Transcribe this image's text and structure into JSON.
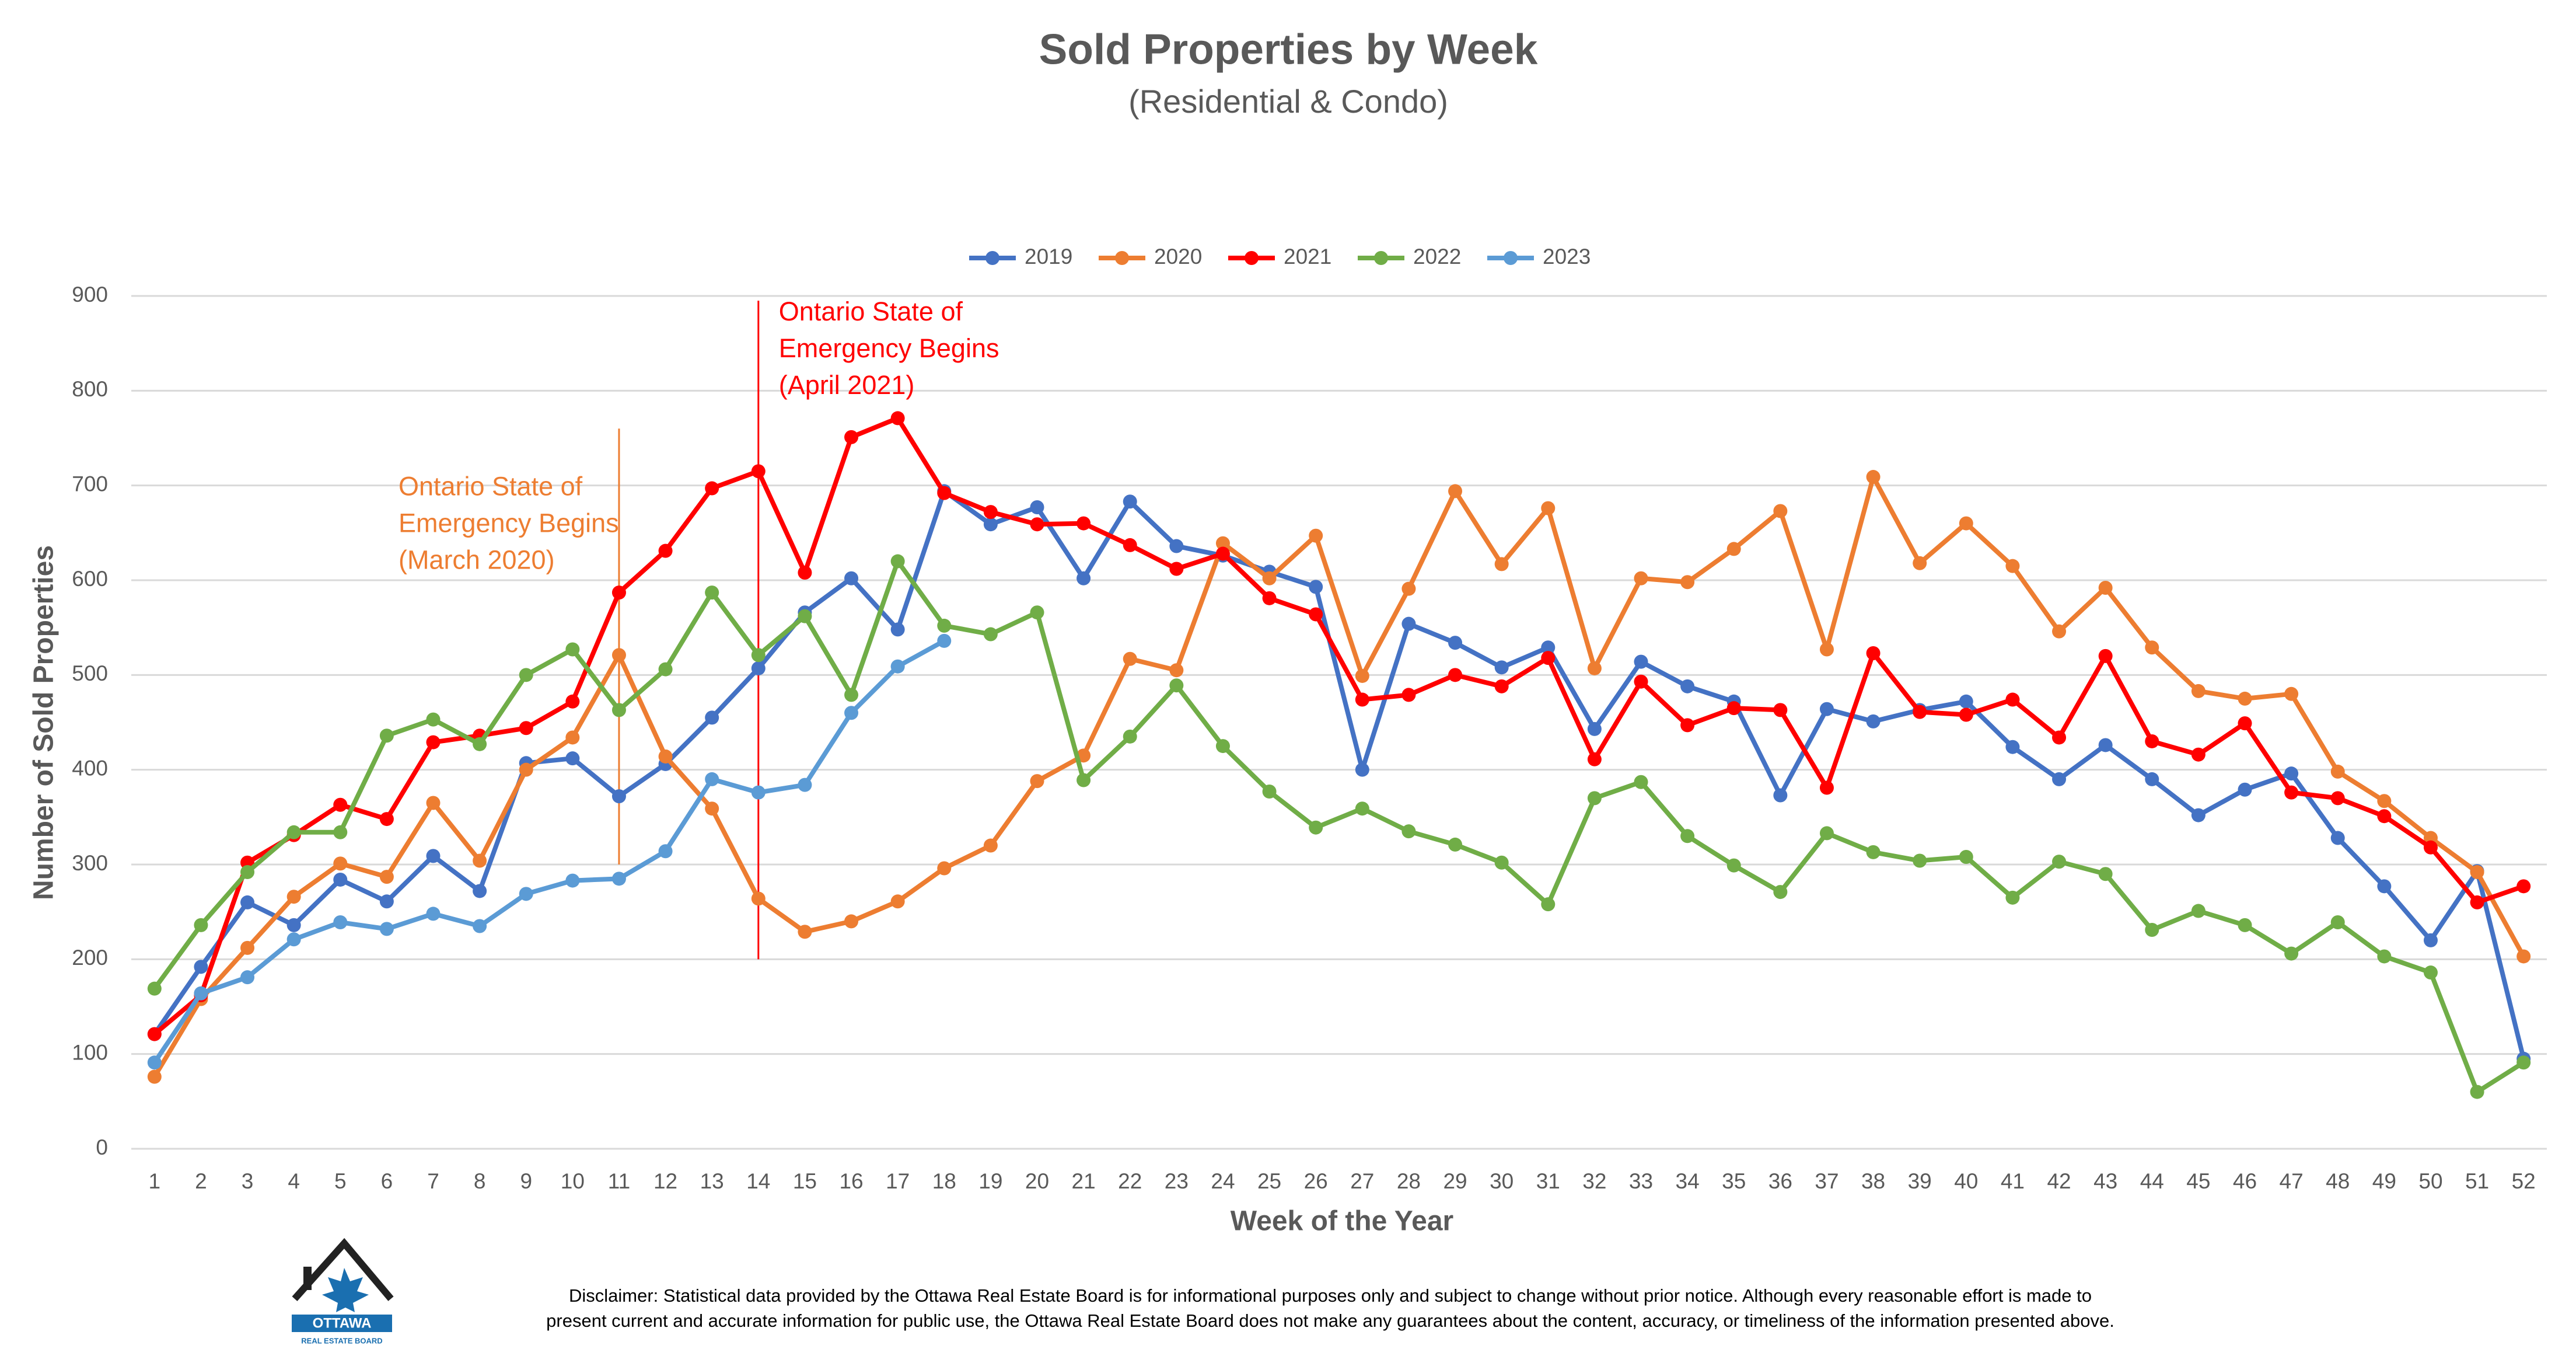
{
  "chart_data": {
    "type": "line",
    "title": "Sold Properties by Week",
    "subtitle": "(Residential & Condo)",
    "x_label": "Week of the Year",
    "y_label": "Number of Sold Properties",
    "categories": [
      "1",
      "2",
      "3",
      "4",
      "5",
      "6",
      "7",
      "8",
      "9",
      "10",
      "11",
      "12",
      "13",
      "14",
      "15",
      "16",
      "17",
      "18",
      "19",
      "20",
      "21",
      "22",
      "23",
      "24",
      "25",
      "26",
      "27",
      "28",
      "29",
      "30",
      "31",
      "32",
      "33",
      "34",
      "35",
      "36",
      "37",
      "38",
      "39",
      "40",
      "41",
      "42",
      "43",
      "44",
      "45",
      "46",
      "47",
      "48",
      "49",
      "50",
      "51",
      "52"
    ],
    "series": [
      {
        "name": "2019",
        "color": "#4472c4",
        "values": [
          121,
          192,
          260,
          236,
          284,
          261,
          309,
          272,
          407,
          412,
          372,
          406,
          455,
          507,
          566,
          602,
          548,
          694,
          659,
          677,
          602,
          683,
          636,
          626,
          609,
          593,
          400,
          554,
          534,
          508,
          529,
          443,
          514,
          488,
          472,
          373,
          464,
          451,
          463,
          472,
          424,
          390,
          426,
          390,
          352,
          379,
          396,
          328,
          277,
          220,
          293,
          95
        ]
      },
      {
        "name": "2020",
        "color": "#ed7d31",
        "values": [
          76,
          158,
          212,
          266,
          301,
          287,
          365,
          304,
          400,
          434,
          521,
          414,
          359,
          264,
          229,
          240,
          261,
          296,
          320,
          388,
          415,
          517,
          505,
          639,
          602,
          647,
          499,
          591,
          694,
          617,
          676,
          507,
          602,
          598,
          633,
          673,
          527,
          709,
          618,
          660,
          615,
          546,
          592,
          529,
          483,
          475,
          480,
          398,
          367,
          328,
          292,
          203
        ]
      },
      {
        "name": "2021",
        "color": "#ff0000",
        "values": [
          121,
          162,
          302,
          331,
          363,
          348,
          429,
          436,
          444,
          472,
          587,
          631,
          697,
          715,
          608,
          751,
          771,
          692,
          672,
          659,
          660,
          637,
          612,
          628,
          581,
          564,
          474,
          479,
          500,
          488,
          518,
          411,
          493,
          447,
          465,
          463,
          381,
          523,
          461,
          458,
          474,
          434,
          520,
          430,
          416,
          449,
          376,
          370,
          351,
          318,
          260,
          277
        ]
      },
      {
        "name": "2022",
        "color": "#70ad47",
        "values": [
          169,
          236,
          292,
          334,
          334,
          436,
          453,
          427,
          500,
          527,
          463,
          506,
          587,
          521,
          562,
          479,
          620,
          552,
          543,
          566,
          389,
          435,
          489,
          425,
          377,
          339,
          359,
          335,
          321,
          302,
          258,
          370,
          387,
          330,
          299,
          271,
          333,
          313,
          304,
          308,
          265,
          303,
          290,
          231,
          251,
          236,
          206,
          239,
          203,
          186,
          60,
          91
        ]
      },
      {
        "name": "2023",
        "color": "#5b9bd5",
        "values": [
          91,
          164,
          181,
          221,
          239,
          232,
          248,
          235,
          269,
          283,
          285,
          314,
          390,
          376,
          384,
          460,
          509,
          536,
          null,
          null,
          null,
          null,
          null,
          null,
          null,
          null,
          null,
          null,
          null,
          null,
          null,
          null,
          null,
          null,
          null,
          null,
          null,
          null,
          null,
          null,
          null,
          null,
          null,
          null,
          null,
          null,
          null,
          null,
          null,
          null,
          null,
          null
        ]
      }
    ],
    "ylim": [
      0,
      900
    ],
    "yticks": [
      0,
      100,
      200,
      300,
      400,
      500,
      600,
      700,
      800,
      900
    ],
    "grid": true,
    "legend": "top",
    "annotations": [
      {
        "week": 11,
        "y_range": [
          300,
          760
        ],
        "color": "#ed7d31",
        "lines": [
          "Ontario State of",
          "Emergency Begins",
          "(March 2020)"
        ]
      },
      {
        "week": 14,
        "y_range": [
          200,
          895
        ],
        "color": "#ff0000",
        "lines": [
          "Ontario State of",
          "Emergency Begins",
          "(April 2021)"
        ]
      }
    ]
  },
  "footer": {
    "logo": [
      "OTTAWA",
      "REAL ESTATE BOARD"
    ],
    "disclaimer": [
      "Disclaimer: Statistical data provided by the Ottawa Real Estate Board is for informational purposes only and subject to change without prior notice. Although every reasonable effort is made to",
      "present current and accurate information for public use, the Ottawa Real Estate Board does not make any guarantees about the content, accuracy, or timeliness of the information presented above."
    ]
  }
}
